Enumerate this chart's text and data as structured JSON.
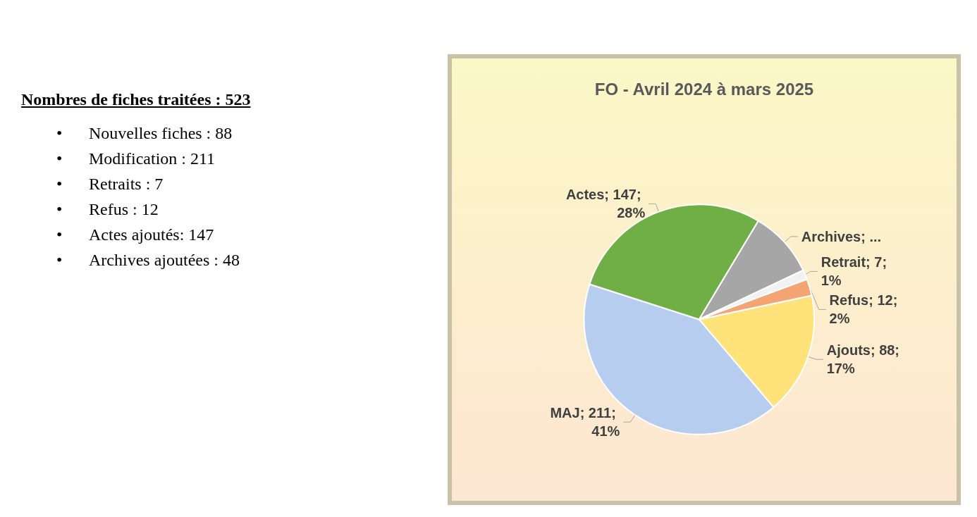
{
  "chart_data": [
    {
      "type": "other",
      "title": "Nombres de fiches traitées : 523",
      "annotations": [
        "• Nouvelles fiches : 88",
        "• Modification : 211",
        "• Retraits : 7",
        "• Refus : 12",
        "• Actes ajoutés: 147",
        "• Archives ajoutées : 48"
      ]
    },
    {
      "type": "pie",
      "title": "FO - Avril 2024 à mars 2025",
      "categories": [
        "Ajouts",
        "MAJ",
        "Actes",
        "Archives",
        "Retrait",
        "Refus"
      ],
      "values": [
        88,
        211,
        147,
        48,
        7,
        12
      ],
      "colors": [
        "#ffe27a",
        "#b7cdef",
        "#6faf46",
        "#a6a6a6",
        "#f2f2f2",
        "#f4a373"
      ],
      "value_labels": [
        "88; 17%",
        "211; 41%",
        "147; 28%",
        "...",
        "7; 1%",
        "12; 2%"
      ]
    }
  ]
}
